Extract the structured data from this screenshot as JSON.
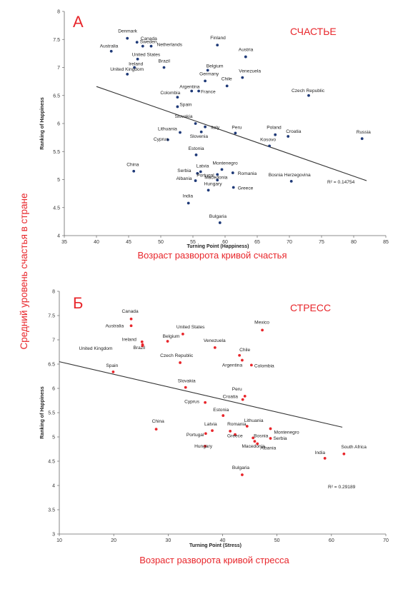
{
  "side_label": "Средний уровень счастья в стране",
  "chart_data": [
    {
      "type": "scatter",
      "panel_letter": "А",
      "panel_title": "СЧАСТЬЕ",
      "caption": "Возраст разворота кривой счастья",
      "xlabel": "Turning Point (Happiness)",
      "ylabel": "Ranking of Happiness",
      "xlim": [
        35,
        85
      ],
      "ylim": [
        4,
        8
      ],
      "xticks": [
        "35",
        "40",
        "45",
        "50",
        "55",
        "60",
        "65",
        "70",
        "75",
        "80",
        "85"
      ],
      "yticks": [
        "4",
        "4.5",
        "5",
        "5.5",
        "6",
        "6.5",
        "7",
        "7.5",
        "8"
      ],
      "r2": "R² = 0.14754",
      "trend": {
        "x": [
          40,
          82
        ],
        "y": [
          6.66,
          4.98
        ]
      },
      "color": "#1f3a78",
      "points": [
        {
          "label": "Denmark",
          "x": 44.8,
          "y": 7.52
        },
        {
          "label": "Canada",
          "x": 46.3,
          "y": 7.45
        },
        {
          "label": "Sweden",
          "x": 47.2,
          "y": 7.38
        },
        {
          "label": "Netherlands",
          "x": 48.5,
          "y": 7.38
        },
        {
          "label": "Australia",
          "x": 42.3,
          "y": 7.29
        },
        {
          "label": "United States",
          "x": 46.4,
          "y": 7.15
        },
        {
          "label": "Ireland",
          "x": 45.9,
          "y": 7.0
        },
        {
          "label": "United Kingdom",
          "x": 44.8,
          "y": 6.88
        },
        {
          "label": "Finland",
          "x": 58.8,
          "y": 7.4
        },
        {
          "label": "Austria",
          "x": 63.2,
          "y": 7.19
        },
        {
          "label": "Brazil",
          "x": 50.5,
          "y": 7.0
        },
        {
          "label": "Belgium",
          "x": 57.3,
          "y": 6.95
        },
        {
          "label": "Germany",
          "x": 56.9,
          "y": 6.76
        },
        {
          "label": "Venezuela",
          "x": 62.7,
          "y": 6.82
        },
        {
          "label": "Chile",
          "x": 60.3,
          "y": 6.67
        },
        {
          "label": "Argentina",
          "x": 54.8,
          "y": 6.58
        },
        {
          "label": "France",
          "x": 55.9,
          "y": 6.58
        },
        {
          "label": "Colombia",
          "x": 52.6,
          "y": 6.47
        },
        {
          "label": "Czech Republic",
          "x": 73.0,
          "y": 6.5
        },
        {
          "label": "Spain",
          "x": 52.6,
          "y": 6.3
        },
        {
          "label": "Slovakia",
          "x": 55.4,
          "y": 6.0
        },
        {
          "label": "Italy",
          "x": 56.9,
          "y": 5.94
        },
        {
          "label": "Lithuania",
          "x": 53.0,
          "y": 5.84
        },
        {
          "label": "Slovenia",
          "x": 56.3,
          "y": 5.85
        },
        {
          "label": "Peru",
          "x": 61.6,
          "y": 5.83
        },
        {
          "label": "Poland",
          "x": 67.8,
          "y": 5.8
        },
        {
          "label": "Croatia",
          "x": 69.8,
          "y": 5.77
        },
        {
          "label": "Kosovo",
          "x": 66.9,
          "y": 5.6
        },
        {
          "label": "Russia",
          "x": 81.3,
          "y": 5.73
        },
        {
          "label": "Cyprus",
          "x": 51.1,
          "y": 5.71
        },
        {
          "label": "Estonia",
          "x": 55.5,
          "y": 5.44
        },
        {
          "label": "China",
          "x": 45.8,
          "y": 5.15
        },
        {
          "label": "Montenegro",
          "x": 59.5,
          "y": 5.18
        },
        {
          "label": "Serbia",
          "x": 55.7,
          "y": 5.11
        },
        {
          "label": "Latvia",
          "x": 56.2,
          "y": 5.14
        },
        {
          "label": "Portugal",
          "x": 58.8,
          "y": 5.09
        },
        {
          "label": "Romania",
          "x": 61.2,
          "y": 5.12
        },
        {
          "label": "Albania",
          "x": 55.4,
          "y": 4.98
        },
        {
          "label": "Macedonia",
          "x": 58.8,
          "y": 4.99
        },
        {
          "label": "Bosnia Herzegovina",
          "x": 70.3,
          "y": 4.97
        },
        {
          "label": "Greece",
          "x": 61.3,
          "y": 4.86
        },
        {
          "label": "Hungary",
          "x": 57.4,
          "y": 4.81
        },
        {
          "label": "India",
          "x": 54.3,
          "y": 4.58
        },
        {
          "label": "Bulgaria",
          "x": 59.2,
          "y": 4.23
        }
      ]
    },
    {
      "type": "scatter",
      "panel_letter": "Б",
      "panel_title": "СТРЕСС",
      "caption": "Возраст разворота кривой стресса",
      "xlabel": "Turning Point (Stress)",
      "ylabel": "Ranking of Happiness",
      "xlim": [
        10,
        70
      ],
      "ylim": [
        3,
        8
      ],
      "xticks": [
        "10",
        "20",
        "30",
        "40",
        "50",
        "60",
        "70"
      ],
      "yticks": [
        "3",
        "3.5",
        "4",
        "4.5",
        "5",
        "5.5",
        "6",
        "6.5",
        "7",
        "7.5",
        "8"
      ],
      "r2": "R² = 0.29189",
      "trend": {
        "x": [
          10,
          62
        ],
        "y": [
          6.55,
          5.2
        ]
      },
      "color": "#e8262b",
      "points": [
        {
          "label": "Canada",
          "x": 23.2,
          "y": 7.43
        },
        {
          "label": "Australia",
          "x": 23.2,
          "y": 7.29
        },
        {
          "label": "United States",
          "x": 32.7,
          "y": 7.12
        },
        {
          "label": "Mexico",
          "x": 47.3,
          "y": 7.2
        },
        {
          "label": "Belgium",
          "x": 29.9,
          "y": 6.97
        },
        {
          "label": "Ireland",
          "x": 25.2,
          "y": 6.96
        },
        {
          "label": "Brazil",
          "x": 25.3,
          "y": 6.9
        },
        {
          "label": "United Kingdom",
          "x": 25.3,
          "y": 6.88
        },
        {
          "label": "Venezuela",
          "x": 38.6,
          "y": 6.84
        },
        {
          "label": "Chile",
          "x": 43.1,
          "y": 6.68
        },
        {
          "label": "Czech Republic",
          "x": 32.2,
          "y": 6.53
        },
        {
          "label": "Argentina",
          "x": 43.6,
          "y": 6.58
        },
        {
          "label": "Colombia",
          "x": 45.3,
          "y": 6.48
        },
        {
          "label": "Spain",
          "x": 19.9,
          "y": 6.34
        },
        {
          "label": "Slovakia",
          "x": 33.2,
          "y": 6.02
        },
        {
          "label": "Peru",
          "x": 44.1,
          "y": 5.84
        },
        {
          "label": "Croatia",
          "x": 43.7,
          "y": 5.77
        },
        {
          "label": "Cyprus",
          "x": 36.8,
          "y": 5.71
        },
        {
          "label": "Estonia",
          "x": 40.1,
          "y": 5.44
        },
        {
          "label": "China",
          "x": 27.8,
          "y": 5.16
        },
        {
          "label": "Latvia",
          "x": 38.1,
          "y": 5.13
        },
        {
          "label": "Romania",
          "x": 41.4,
          "y": 5.12
        },
        {
          "label": "Lithuania",
          "x": 44.5,
          "y": 5.22
        },
        {
          "label": "Montenegro",
          "x": 48.8,
          "y": 5.17
        },
        {
          "label": "Portugal",
          "x": 36.9,
          "y": 5.07
        },
        {
          "label": "Greece",
          "x": 42.3,
          "y": 5.05
        },
        {
          "label": "Bosnia",
          "x": 45.6,
          "y": 4.98
        },
        {
          "label": "Serbia",
          "x": 48.8,
          "y": 4.97
        },
        {
          "label": "Hungary",
          "x": 36.8,
          "y": 4.81
        },
        {
          "label": "Macedonia",
          "x": 45.9,
          "y": 4.91
        },
        {
          "label": "Albania",
          "x": 46.4,
          "y": 4.86
        },
        {
          "label": "India",
          "x": 58.8,
          "y": 4.56
        },
        {
          "label": "South Africa",
          "x": 62.3,
          "y": 4.65
        },
        {
          "label": "Bulgaria",
          "x": 43.6,
          "y": 4.22
        }
      ]
    }
  ]
}
